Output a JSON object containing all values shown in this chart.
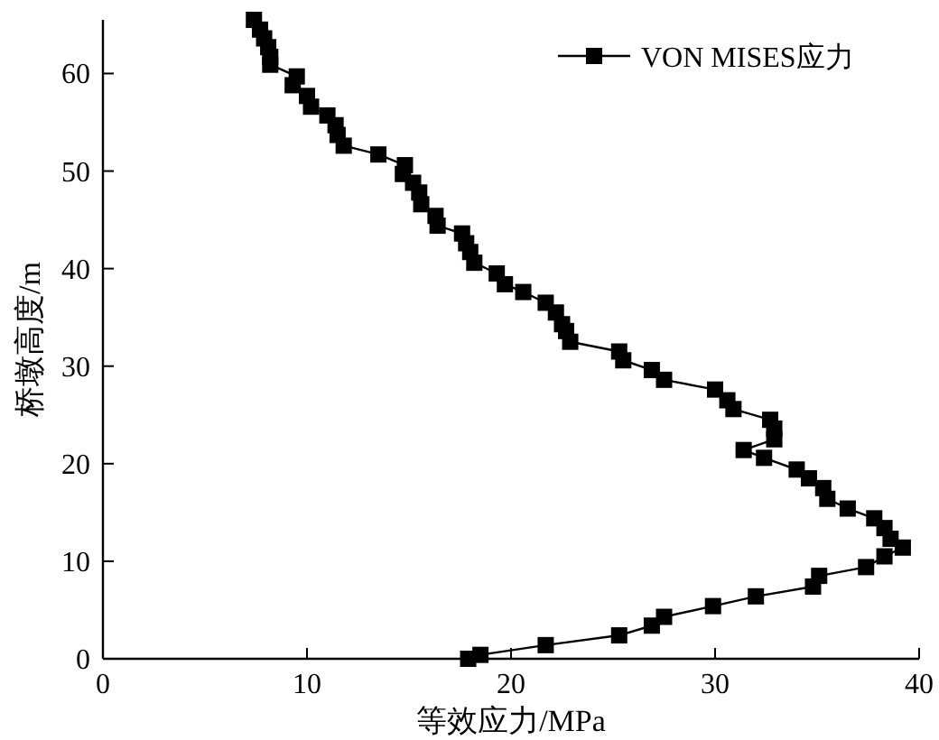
{
  "chart_data": {
    "type": "line",
    "xlabel": "等效应力/MPa",
    "ylabel": "桥墩高度/m",
    "xlim": [
      0,
      40
    ],
    "xticks": [
      0,
      10,
      20,
      30,
      40
    ],
    "ylim": [
      0,
      65.5
    ],
    "yticks": [
      0,
      10,
      20,
      30,
      40,
      50,
      60
    ],
    "marker": "square",
    "line_style": "solid",
    "legend": "top right",
    "grid": false,
    "series": [
      {
        "name": "VON MISES应力",
        "color": "#000000",
        "x": [
          17.9,
          18.5,
          21.7,
          25.3,
          26.9,
          27.5,
          29.9,
          32.0,
          34.8,
          35.1,
          37.4,
          38.3,
          39.2,
          38.6,
          38.3,
          37.8,
          36.5,
          35.5,
          35.3,
          34.6,
          34.0,
          32.4,
          31.4,
          32.9,
          32.9,
          32.7,
          30.9,
          30.6,
          30.0,
          27.5,
          26.9,
          25.5,
          25.3,
          22.9,
          22.7,
          22.5,
          22.2,
          21.7,
          20.6,
          19.7,
          19.3,
          18.2,
          18.0,
          17.8,
          17.6,
          16.4,
          16.3,
          15.6,
          15.5,
          15.2,
          14.7,
          14.8,
          13.5,
          11.8,
          11.5,
          11.4,
          11.0,
          10.2,
          10.0,
          9.3,
          9.5,
          8.2,
          8.2,
          8.1,
          7.9,
          7.7,
          7.4
        ],
        "values": [
          0.0,
          0.4,
          1.4,
          2.4,
          3.4,
          4.3,
          5.4,
          6.4,
          7.4,
          8.5,
          9.4,
          10.5,
          11.4,
          12.3,
          13.4,
          14.4,
          15.4,
          16.4,
          17.5,
          18.5,
          19.4,
          20.6,
          21.4,
          22.5,
          23.6,
          24.5,
          25.6,
          26.5,
          27.6,
          28.6,
          29.6,
          30.6,
          31.5,
          32.5,
          33.6,
          34.3,
          35.5,
          36.5,
          37.6,
          38.4,
          39.5,
          40.6,
          41.7,
          42.6,
          43.6,
          44.4,
          45.4,
          46.6,
          47.8,
          48.8,
          49.7,
          50.6,
          51.7,
          52.6,
          53.7,
          54.7,
          55.7,
          56.6,
          57.7,
          58.8,
          59.7,
          60.9,
          61.7,
          62.7,
          63.6,
          64.5,
          65.5
        ]
      }
    ]
  }
}
